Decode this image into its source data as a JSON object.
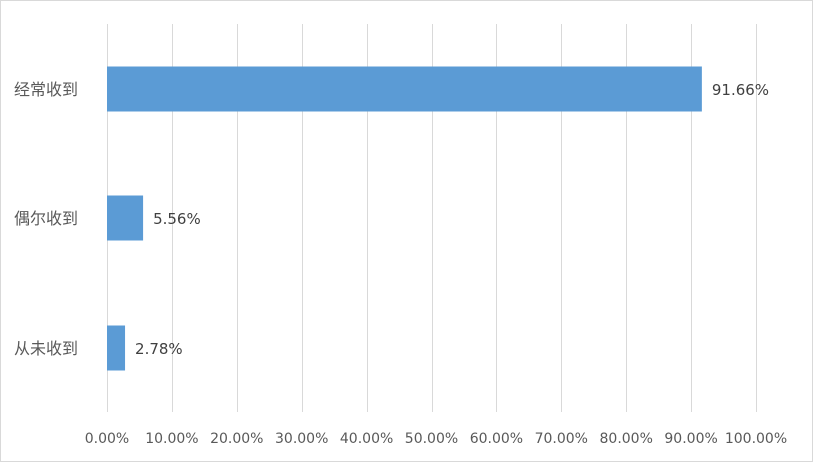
{
  "chart_data": {
    "type": "bar",
    "orientation": "horizontal",
    "categories": [
      "经常收到",
      "偶尔收到",
      "从未收到"
    ],
    "values": [
      91.66,
      5.56,
      2.78
    ],
    "data_labels": [
      "91.66%",
      "5.56%",
      "2.78%"
    ],
    "xlim": [
      0,
      100
    ],
    "x_ticks": [
      0,
      10,
      20,
      30,
      40,
      50,
      60,
      70,
      80,
      90,
      100
    ],
    "x_tick_labels": [
      "0.00%",
      "10.00%",
      "20.00%",
      "30.00%",
      "40.00%",
      "50.00%",
      "60.00%",
      "70.00%",
      "80.00%",
      "90.00%",
      "100.00%"
    ],
    "grid": "vertical",
    "legend": "none",
    "bar_color": "#5b9bd5",
    "grid_color": "#d9d9d9"
  }
}
